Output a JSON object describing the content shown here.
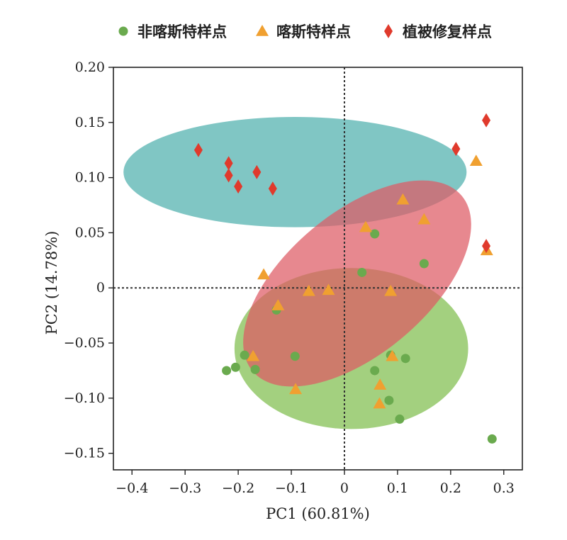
{
  "chart_data": {
    "type": "scatter",
    "xlabel": "PC1 (60.81%)",
    "ylabel": "PC2 (14.78%)",
    "xlim": [
      -0.435,
      0.335
    ],
    "ylim": [
      -0.165,
      0.2
    ],
    "xticks": [
      -0.4,
      -0.3,
      -0.2,
      -0.1,
      0,
      0.1,
      0.2,
      0.3
    ],
    "xtick_labels": [
      "−0.4",
      "−0.3",
      "−0.2",
      "−0.1",
      "0",
      "0.1",
      "0.2",
      "0.3"
    ],
    "yticks": [
      0.2,
      0.15,
      0.1,
      0.05,
      0,
      -0.05,
      -0.1,
      -0.15
    ],
    "ytick_labels": [
      "0.20",
      "0.15",
      "0.10",
      "0.05",
      "0",
      "−0.05",
      "−0.10",
      "−0.15"
    ],
    "reference_lines": {
      "x": 0,
      "y": 0,
      "style": "dotted"
    },
    "legend_position": "top",
    "series": [
      {
        "name": "非喀斯特样点",
        "marker": "circle",
        "color": "#6aaa4e",
        "points": [
          [
            -0.222,
            -0.075
          ],
          [
            -0.205,
            -0.072
          ],
          [
            -0.188,
            -0.061
          ],
          [
            -0.168,
            -0.074
          ],
          [
            -0.128,
            -0.02
          ],
          [
            -0.093,
            -0.062
          ],
          [
            0.033,
            0.014
          ],
          [
            0.057,
            0.049
          ],
          [
            0.057,
            -0.075
          ],
          [
            0.084,
            -0.102
          ],
          [
            0.087,
            -0.061
          ],
          [
            0.104,
            -0.119
          ],
          [
            0.115,
            -0.064
          ],
          [
            0.15,
            0.022
          ],
          [
            0.278,
            -0.137
          ]
        ]
      },
      {
        "name": "喀斯特样点",
        "marker": "triangle",
        "color": "#f0a030",
        "points": [
          [
            -0.152,
            0.012
          ],
          [
            -0.172,
            -0.062
          ],
          [
            -0.125,
            -0.016
          ],
          [
            -0.092,
            -0.092
          ],
          [
            -0.067,
            -0.003
          ],
          [
            -0.03,
            -0.002
          ],
          [
            0.04,
            0.055
          ],
          [
            0.067,
            -0.088
          ],
          [
            0.066,
            -0.105
          ],
          [
            0.087,
            -0.003
          ],
          [
            0.09,
            -0.062
          ],
          [
            0.11,
            0.08
          ],
          [
            0.15,
            0.062
          ],
          [
            0.248,
            0.115
          ],
          [
            0.268,
            0.034
          ]
        ]
      },
      {
        "name": "植被修复样点",
        "marker": "diamond",
        "color": "#e03a2c",
        "points": [
          [
            -0.275,
            0.125
          ],
          [
            -0.218,
            0.113
          ],
          [
            -0.218,
            0.102
          ],
          [
            -0.2,
            0.092
          ],
          [
            -0.165,
            0.105
          ],
          [
            -0.135,
            0.09
          ],
          [
            0.21,
            0.126
          ],
          [
            0.267,
            0.152
          ],
          [
            0.267,
            0.038
          ]
        ]
      }
    ],
    "ellipses": [
      {
        "cx": -0.093,
        "cy": 0.105,
        "rx": 0.323,
        "ry": 0.05,
        "angle": 0,
        "color": "#4fb0ad"
      },
      {
        "cx": 0.013,
        "cy": -0.055,
        "rx": 0.22,
        "ry": 0.073,
        "angle": 0,
        "color": "#7fbe4e"
      },
      {
        "cx": 0.024,
        "cy": 0.004,
        "rx": 0.257,
        "ry": 0.064,
        "angle": -40,
        "color": "#de5a64"
      }
    ]
  }
}
